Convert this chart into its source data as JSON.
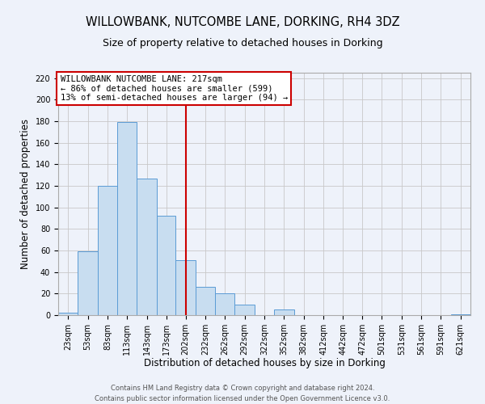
{
  "title": "WILLOWBANK, NUTCOMBE LANE, DORKING, RH4 3DZ",
  "subtitle": "Size of property relative to detached houses in Dorking",
  "xlabel": "Distribution of detached houses by size in Dorking",
  "ylabel": "Number of detached properties",
  "bar_color": "#c8ddf0",
  "bar_edgecolor": "#5b9bd5",
  "background_color": "#eef2fa",
  "grid_color": "#c8c8c8",
  "annotation_line1": "WILLOWBANK NUTCOMBE LANE: 217sqm",
  "annotation_line2": "← 86% of detached houses are smaller (599)",
  "annotation_line3": "13% of semi-detached houses are larger (94) →",
  "vline_x": 217,
  "vline_color": "#cc0000",
  "bins_left": [
    23,
    53,
    83,
    113,
    143,
    173,
    202,
    232,
    262,
    292,
    322,
    352,
    382,
    412,
    442,
    472,
    501,
    531,
    561,
    591,
    621
  ],
  "bin_widths": [
    30,
    30,
    30,
    30,
    30,
    29,
    30,
    30,
    30,
    30,
    30,
    30,
    30,
    30,
    30,
    29,
    30,
    30,
    30,
    30,
    30
  ],
  "counts": [
    2,
    59,
    120,
    179,
    127,
    92,
    51,
    26,
    20,
    10,
    0,
    5,
    0,
    0,
    0,
    0,
    0,
    0,
    0,
    0,
    1
  ],
  "ylim": [
    0,
    225
  ],
  "yticks": [
    0,
    20,
    40,
    60,
    80,
    100,
    120,
    140,
    160,
    180,
    200,
    220
  ],
  "xlim_left": 23,
  "xlim_right": 651,
  "footer_line1": "Contains HM Land Registry data © Crown copyright and database right 2024.",
  "footer_line2": "Contains public sector information licensed under the Open Government Licence v3.0.",
  "title_fontsize": 10.5,
  "subtitle_fontsize": 9,
  "xlabel_fontsize": 8.5,
  "ylabel_fontsize": 8.5,
  "tick_fontsize": 7,
  "footer_fontsize": 6,
  "annot_fontsize": 7.5
}
